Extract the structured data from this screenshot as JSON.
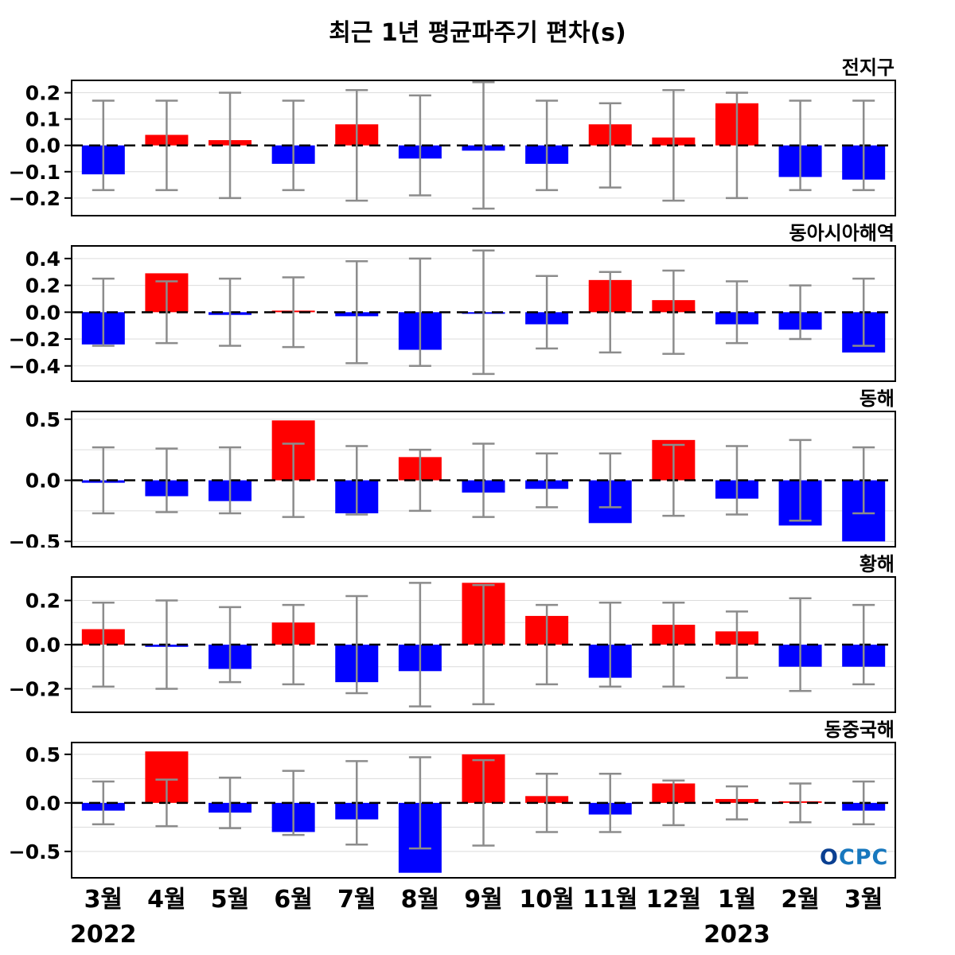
{
  "title": "최근 1년 평균파주기 편차(s)",
  "logo_text": "OCPC",
  "colors": {
    "positive": "#ff0000",
    "negative": "#0000ff",
    "error_bar": "#8c8c8c",
    "zero_line": "#000000",
    "grid": "#dcdcdc",
    "box_border": "#000000",
    "logo_blue": "#1878be",
    "logo_dark_blue": "#0a3f91"
  },
  "x_axis": {
    "month_labels": [
      "3월",
      "4월",
      "5월",
      "6월",
      "7월",
      "8월",
      "9월",
      "10월",
      "11월",
      "12월",
      "1월",
      "2월",
      "3월"
    ],
    "year_labels": [
      {
        "text": "2022",
        "month_index": 0
      },
      {
        "text": "2023",
        "month_index": 10
      }
    ]
  },
  "chart_data": [
    {
      "type": "bar",
      "title": "전지구",
      "ylabel": "",
      "ylim": [
        -0.27,
        0.25
      ],
      "yticks": [
        0.2,
        0.1,
        0.0,
        -0.1,
        -0.2
      ],
      "ygrid": [
        0.2,
        0.1,
        -0.1,
        -0.2
      ],
      "values": [
        -0.11,
        0.04,
        0.02,
        -0.07,
        0.08,
        -0.05,
        -0.02,
        -0.07,
        0.08,
        0.03,
        0.16,
        -0.12,
        -0.13
      ],
      "errors": [
        0.17,
        0.17,
        0.2,
        0.17,
        0.21,
        0.19,
        0.24,
        0.17,
        0.16,
        0.21,
        0.2,
        0.17,
        0.17
      ]
    },
    {
      "type": "bar",
      "title": "동아시아해역",
      "ylabel": "",
      "ylim": [
        -0.52,
        0.5
      ],
      "yticks": [
        0.4,
        0.2,
        0.0,
        -0.2,
        -0.4
      ],
      "ygrid": [
        0.4,
        0.2,
        -0.2,
        -0.4
      ],
      "values": [
        -0.24,
        0.29,
        -0.02,
        0.01,
        -0.03,
        -0.28,
        -0.01,
        -0.09,
        0.24,
        0.09,
        -0.09,
        -0.13,
        -0.3
      ],
      "errors": [
        0.25,
        0.23,
        0.25,
        0.26,
        0.38,
        0.4,
        0.46,
        0.27,
        0.3,
        0.31,
        0.23,
        0.2,
        0.25
      ]
    },
    {
      "type": "bar",
      "title": "동해",
      "ylabel": "",
      "ylim": [
        -0.55,
        0.57
      ],
      "yticks": [
        0.5,
        0.0,
        -0.5
      ],
      "ygrid": [
        0.5,
        0.25,
        -0.25,
        -0.5
      ],
      "values": [
        -0.02,
        -0.13,
        -0.17,
        0.49,
        -0.27,
        0.19,
        -0.1,
        -0.07,
        -0.35,
        0.33,
        -0.15,
        -0.37,
        -0.5
      ],
      "errors": [
        0.27,
        0.26,
        0.27,
        0.3,
        0.28,
        0.25,
        0.3,
        0.22,
        0.22,
        0.29,
        0.28,
        0.33,
        0.27
      ]
    },
    {
      "type": "bar",
      "title": "황해",
      "ylabel": "",
      "ylim": [
        -0.31,
        0.31
      ],
      "yticks": [
        0.2,
        0.0,
        -0.2
      ],
      "ygrid": [
        0.2,
        0.1,
        -0.1,
        -0.2
      ],
      "values": [
        0.07,
        -0.01,
        -0.11,
        0.1,
        -0.17,
        -0.12,
        0.28,
        0.13,
        -0.15,
        0.09,
        0.06,
        -0.1,
        -0.1
      ],
      "errors": [
        0.19,
        0.2,
        0.17,
        0.18,
        0.22,
        0.28,
        0.27,
        0.18,
        0.19,
        0.19,
        0.15,
        0.21,
        0.18
      ]
    },
    {
      "type": "bar",
      "title": "동중국해",
      "ylabel": "",
      "ylim": [
        -0.78,
        0.63
      ],
      "yticks": [
        0.5,
        0.0,
        -0.5
      ],
      "ygrid": [
        0.5,
        0.25,
        -0.25,
        -0.5
      ],
      "values": [
        -0.08,
        0.53,
        -0.1,
        -0.3,
        -0.17,
        -0.72,
        0.5,
        0.07,
        -0.12,
        0.2,
        0.04,
        0.01,
        -0.08
      ],
      "errors": [
        0.22,
        0.24,
        0.26,
        0.33,
        0.43,
        0.47,
        0.44,
        0.3,
        0.3,
        0.23,
        0.17,
        0.2,
        0.22
      ]
    }
  ]
}
